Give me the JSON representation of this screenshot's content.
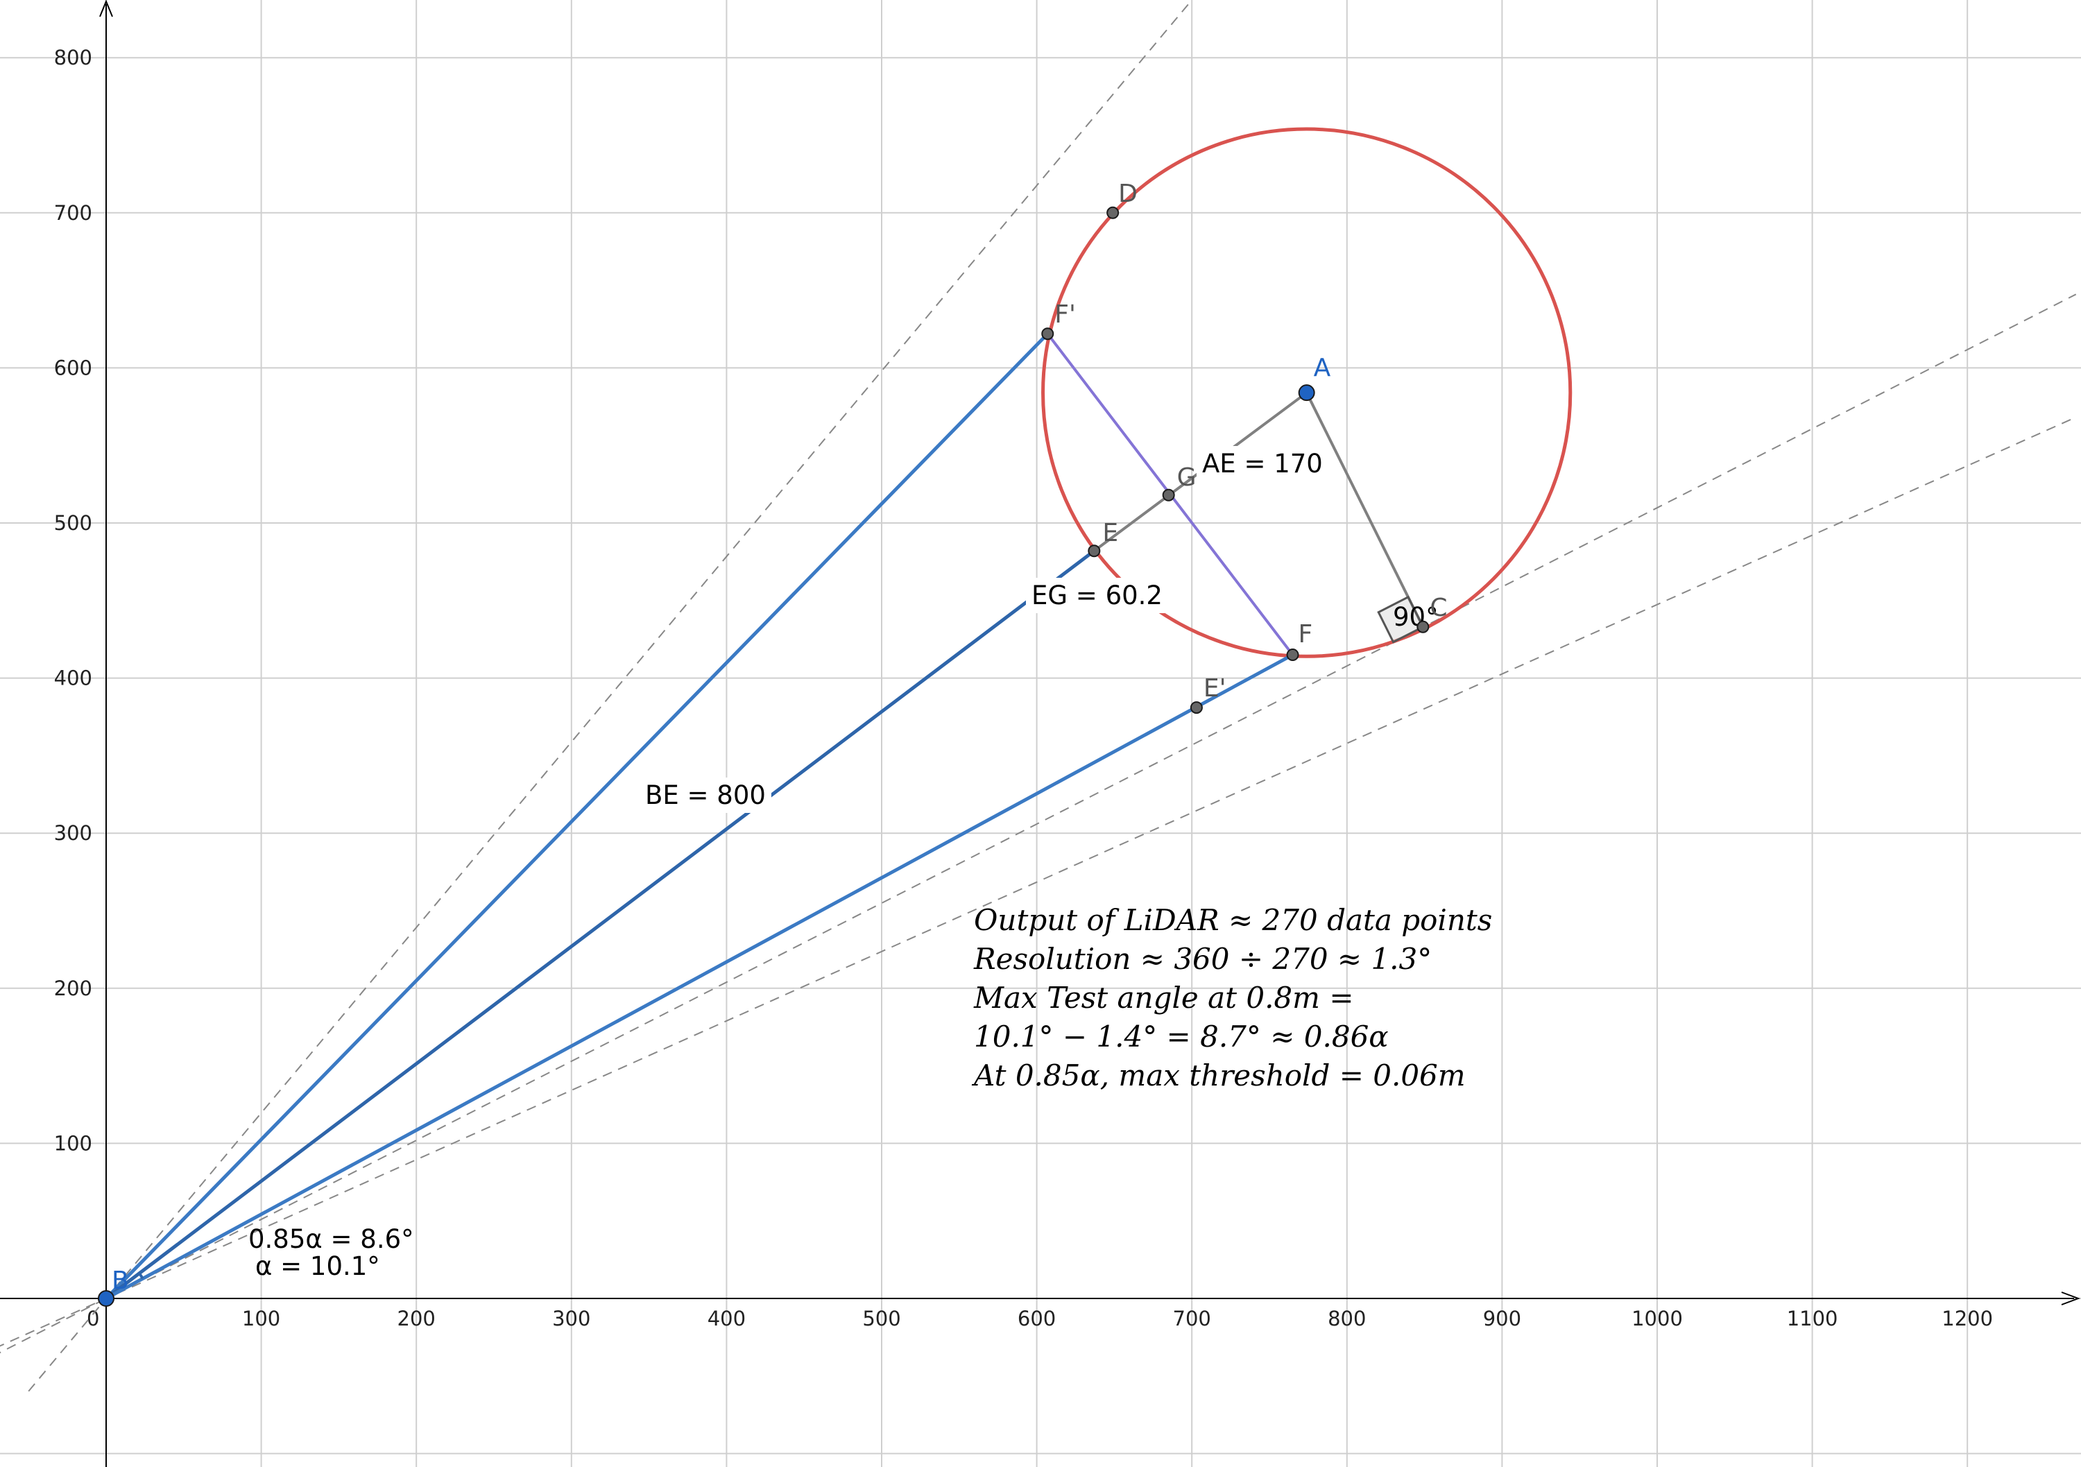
{
  "axes": {
    "x_ticks": [
      "0",
      "100",
      "200",
      "300",
      "400",
      "500",
      "600",
      "700",
      "800",
      "900",
      "1000",
      "1100",
      "1200"
    ],
    "y_ticks": [
      "100",
      "200",
      "300",
      "400",
      "500",
      "600",
      "700",
      "800"
    ]
  },
  "colors": {
    "circle": "#d9534f",
    "ray": "#3b7ac4",
    "ray_dark": "#2e65aa",
    "chord": "#8474d6",
    "radius": "#808080",
    "point_blue": "#1f63c2",
    "point_gray": "#666666",
    "grid": "#cfcfcf",
    "dashed": "#888888"
  },
  "points": [
    {
      "id": "A",
      "label": "A",
      "x": 774,
      "y": 584,
      "color": "#1f63c2",
      "label_color": "#1f63c2"
    },
    {
      "id": "B",
      "label": "B",
      "x": 0,
      "y": 0,
      "color": "#1f63c2",
      "label_color": "#1f63c2"
    },
    {
      "id": "C",
      "label": "C",
      "x": 849,
      "y": 433,
      "color": "#666666",
      "label_color": "#555555"
    },
    {
      "id": "D",
      "label": "D",
      "x": 649,
      "y": 700,
      "color": "#666666",
      "label_color": "#555555"
    },
    {
      "id": "E",
      "label": "E",
      "x": 637,
      "y": 482,
      "color": "#666666",
      "label_color": "#555555"
    },
    {
      "id": "E2",
      "label": "E'",
      "x": 703,
      "y": 381,
      "color": "#666666",
      "label_color": "#555555"
    },
    {
      "id": "F",
      "label": "F",
      "x": 765,
      "y": 415,
      "color": "#666666",
      "label_color": "#555555"
    },
    {
      "id": "F2",
      "label": "F'",
      "x": 607,
      "y": 622,
      "color": "#666666",
      "label_color": "#555555"
    },
    {
      "id": "G",
      "label": "G",
      "x": 685,
      "y": 518,
      "color": "#666666",
      "label_color": "#555555"
    }
  ],
  "circle": {
    "center": "A",
    "radius": 170
  },
  "labels": {
    "ae": "AE = 170",
    "eg": "EG = 60.2",
    "be": "BE = 800",
    "right_angle": "90°",
    "angle_085": "0.85α = 8.6°",
    "angle_alpha": "α = 10.1°"
  },
  "notes": [
    "Output of LiDAR ≈ 270 data points",
    "Resolution ≈ 360 ÷ 270 ≈ 1.3°",
    "Max Test angle at 0.8m =",
    "10.1° − 1.4° = 8.7° ≈ 0.86α",
    "At 0.85α, max threshold = 0.06m"
  ]
}
